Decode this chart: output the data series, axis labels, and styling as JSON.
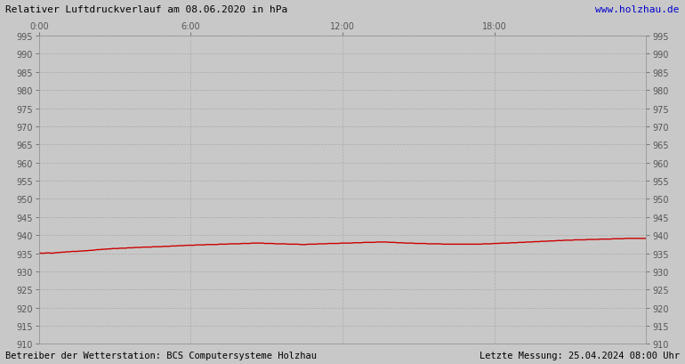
{
  "title": "Relativer Luftdruckverlauf am 08.06.2020 in hPa",
  "url_text": "www.holzhau.de",
  "footer_left": "Betreiber der Wetterstation: BCS Computersysteme Holzhau",
  "footer_right": "Letzte Messung: 25.04.2024 08:00 Uhr",
  "ylim": [
    910,
    995
  ],
  "ytick_step": 5,
  "x_tick_labels": [
    "0:00",
    "6:00",
    "12:00",
    "18:00"
  ],
  "x_tick_positions": [
    0,
    0.25,
    0.5,
    0.75
  ],
  "bg_color": "#c8c8c8",
  "plot_bg_color": "#c8c8c8",
  "line_color": "#cc0000",
  "grid_color": "#aaaaaa",
  "title_color": "#000000",
  "url_color": "#0000cc",
  "footer_color": "#000000",
  "pressure_values": [
    935.1,
    935.0,
    935.0,
    935.1,
    935.1,
    935.0,
    935.1,
    935.2,
    935.2,
    935.3,
    935.3,
    935.4,
    935.4,
    935.5,
    935.5,
    935.5,
    935.6,
    935.6,
    935.7,
    935.7,
    935.8,
    935.8,
    935.9,
    936.0,
    936.0,
    936.1,
    936.1,
    936.2,
    936.2,
    936.3,
    936.3,
    936.3,
    936.4,
    936.4,
    936.4,
    936.5,
    936.5,
    936.5,
    936.6,
    936.6,
    936.6,
    936.7,
    936.7,
    936.7,
    936.7,
    936.8,
    936.8,
    936.8,
    936.8,
    936.9,
    936.9,
    936.9,
    937.0,
    937.0,
    937.0,
    937.1,
    937.1,
    937.1,
    937.2,
    937.2,
    937.2,
    937.2,
    937.3,
    937.3,
    937.3,
    937.3,
    937.4,
    937.4,
    937.4,
    937.4,
    937.4,
    937.5,
    937.5,
    937.5,
    937.5,
    937.6,
    937.6,
    937.6,
    937.6,
    937.6,
    937.7,
    937.7,
    937.7,
    937.7,
    937.8,
    937.8,
    937.8,
    937.8,
    937.8,
    937.7,
    937.7,
    937.7,
    937.7,
    937.6,
    937.6,
    937.6,
    937.6,
    937.6,
    937.5,
    937.5,
    937.5,
    937.5,
    937.5,
    937.4,
    937.4,
    937.4,
    937.5,
    937.5,
    937.5,
    937.5,
    937.6,
    937.6,
    937.6,
    937.6,
    937.7,
    937.7,
    937.7,
    937.7,
    937.7,
    937.8,
    937.8,
    937.8,
    937.8,
    937.8,
    937.9,
    937.9,
    937.9,
    937.9,
    938.0,
    938.0,
    938.0,
    938.0,
    938.0,
    938.1,
    938.1,
    938.1,
    938.1,
    938.1,
    938.0,
    938.0,
    938.0,
    937.9,
    937.9,
    937.9,
    937.8,
    937.8,
    937.8,
    937.8,
    937.7,
    937.7,
    937.7,
    937.7,
    937.7,
    937.6,
    937.6,
    937.6,
    937.6,
    937.6,
    937.6,
    937.5,
    937.5,
    937.5,
    937.5,
    937.5,
    937.5,
    937.5,
    937.5,
    937.5,
    937.5,
    937.5,
    937.5,
    937.5,
    937.5,
    937.5,
    937.5,
    937.6,
    937.6,
    937.6,
    937.6,
    937.7,
    937.7,
    937.7,
    937.8,
    937.8,
    937.8,
    937.8,
    937.9,
    937.9,
    937.9,
    938.0,
    938.0,
    938.0,
    938.1,
    938.1,
    938.1,
    938.2,
    938.2,
    938.2,
    938.3,
    938.3,
    938.3,
    938.4,
    938.4,
    938.4,
    938.5,
    938.5,
    938.5,
    938.6,
    938.6,
    938.6,
    938.6,
    938.7,
    938.7,
    938.7,
    938.7,
    938.7,
    938.8,
    938.8,
    938.8,
    938.8,
    938.8,
    938.9,
    938.9,
    938.9,
    938.9,
    938.9,
    939.0,
    939.0,
    939.0,
    939.0,
    939.0,
    939.1,
    939.1,
    939.1,
    939.1,
    939.1,
    939.1,
    939.1,
    939.1,
    939.1
  ],
  "num_points": 240
}
